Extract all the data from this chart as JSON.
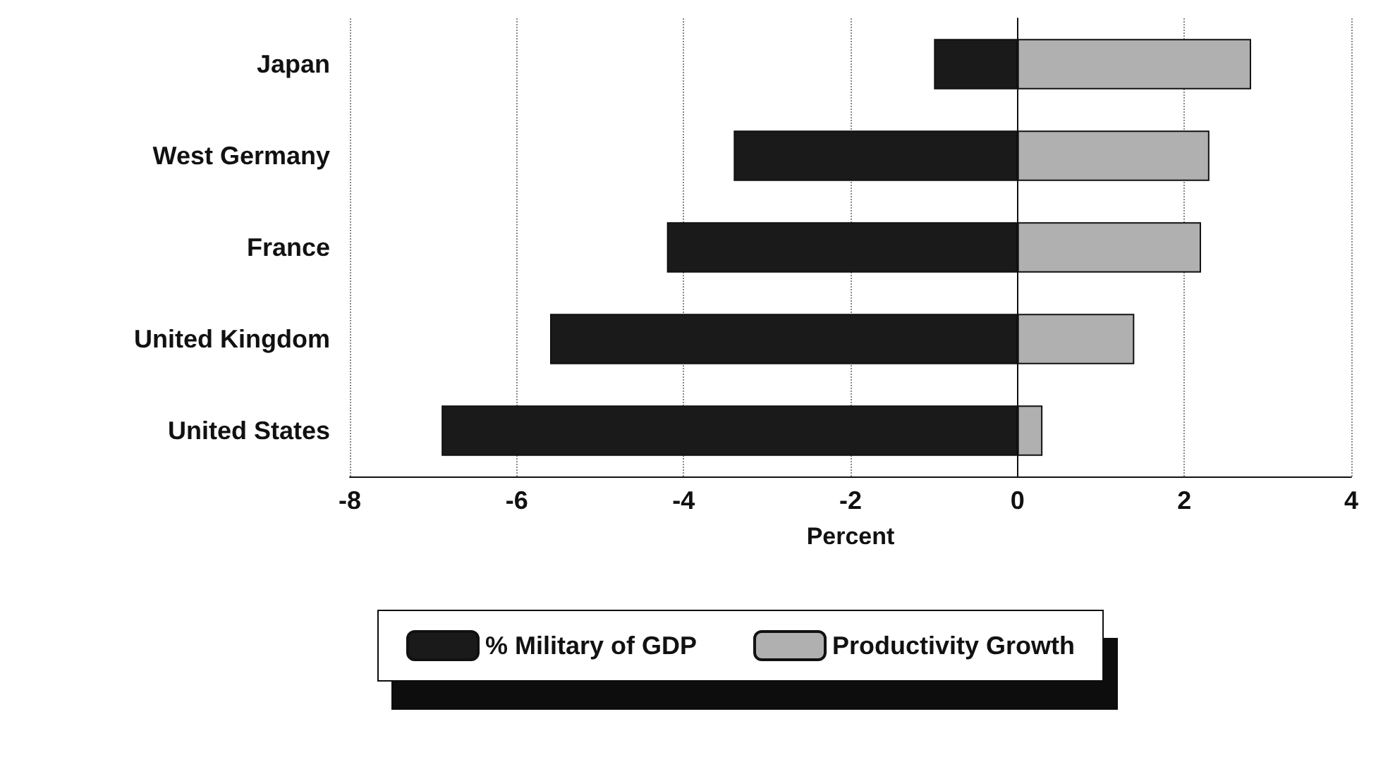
{
  "chart_data": {
    "type": "bar",
    "orientation": "horizontal",
    "stacked": true,
    "xlabel": "Percent",
    "categories": [
      "Japan",
      "West Germany",
      "France",
      "United Kingdom",
      "United States"
    ],
    "series": [
      {
        "name": "% Military of GDP",
        "color": "#1a1a1a",
        "values": [
          -1.0,
          -3.4,
          -4.2,
          -5.6,
          -6.9
        ]
      },
      {
        "name": "Productivity Growth",
        "color": "#b0b0b0",
        "values": [
          2.8,
          2.3,
          2.2,
          1.4,
          0.3
        ]
      }
    ],
    "xlim": [
      -8,
      4
    ],
    "xticks": [
      -8,
      -6,
      -4,
      -2,
      0,
      2,
      4
    ],
    "grid": "x",
    "legend": "bottom"
  }
}
